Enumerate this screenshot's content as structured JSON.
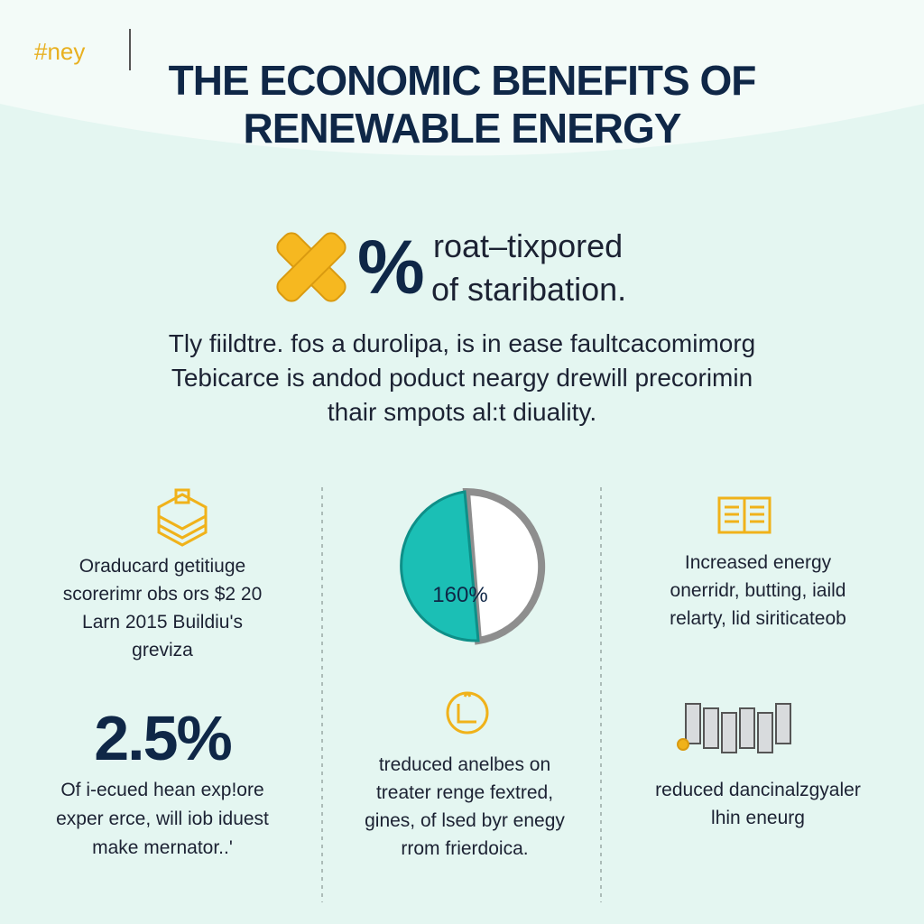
{
  "header": {
    "brand": "#ney",
    "title_lines": [
      "THE ECONOMIC BENEFITS OF",
      "RENEWABLE ENERGY"
    ]
  },
  "highlight": {
    "symbol": "%",
    "lines": [
      "roat–tixpored",
      "of staribation."
    ]
  },
  "intro": {
    "lines": [
      "Tly fiildtre. fos a durolipa, is in ease faultcacomimorg",
      "Tebicarce is andod poduct neargy drewill precorimin",
      "thair smpots al:t diuality."
    ]
  },
  "left": {
    "lines": [
      "Oraducard getitiuge",
      "scorerimr obs ors $2 20",
      "Larn 2015 Buildiu's",
      "greviza"
    ],
    "stat": "2.5%",
    "stat_lines": [
      "Of i-ecued hean exp!ore",
      "exper erce, will iob iduest",
      "make mernator..'"
    ]
  },
  "center": {
    "pie_label": "160%",
    "lines": [
      "treduced anelbes on",
      "treater renge fextred,",
      "gines, of lsed byr enegy",
      "rrom frierdoica."
    ]
  },
  "right": {
    "lines": [
      "Increased energy",
      "onerridr, butting, iaild",
      "relarty, lid siriticateob"
    ],
    "bottom_lines": [
      "reduced dancinalzgyaler",
      "lhin eneurg"
    ]
  }
}
